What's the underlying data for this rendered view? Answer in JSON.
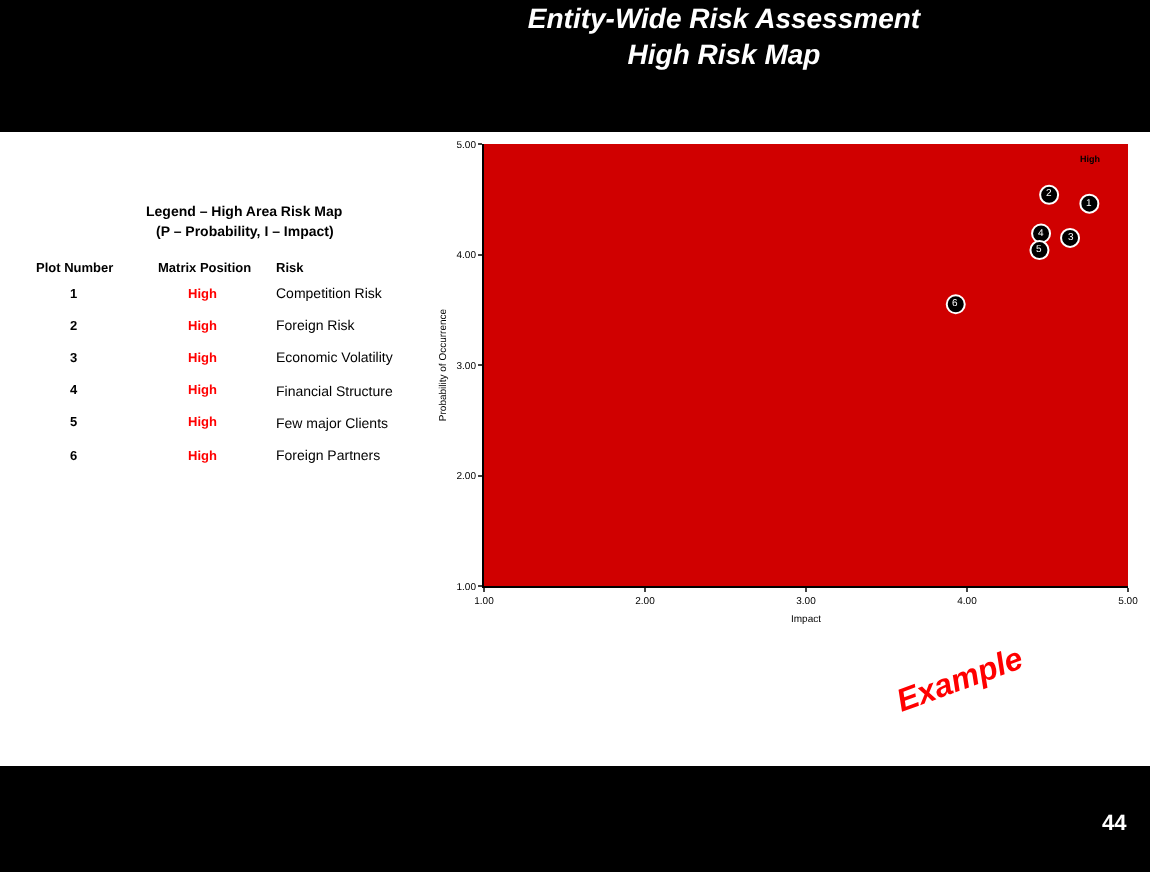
{
  "chart_data": {
    "type": "scatter",
    "title": "Entity-Wide Risk Assessment\nHigh Risk Map",
    "xlabel": "Impact",
    "ylabel": "Probability of Occurrence",
    "x": [
      4.76,
      4.51,
      4.64,
      4.46,
      4.45,
      3.93
    ],
    "series": [
      {
        "color": "#000000",
        "values": [
          4.46,
          4.54,
          4.15,
          4.19,
          4.04,
          3.55
        ]
      }
    ],
    "marker": "circle",
    "xlim": [
      1,
      5
    ],
    "ylim": [
      1,
      5
    ],
    "xticks": [
      {
        "value": 1,
        "label": "1.00"
      },
      {
        "value": 2,
        "label": "2.00"
      },
      {
        "value": 3,
        "label": "3.00"
      },
      {
        "value": 4,
        "label": "4.00"
      },
      {
        "value": 5,
        "label": "5.00"
      }
    ],
    "yticks": [
      {
        "value": 1,
        "label": "1.00"
      },
      {
        "value": 2,
        "label": "2.00"
      },
      {
        "value": 3,
        "label": "3.00"
      },
      {
        "value": 4,
        "label": "4.00"
      },
      {
        "value": 5,
        "label": "5.00"
      }
    ],
    "annotations": [
      "Legend – High Area Risk Map",
      "(P – Probability, I – Impact)",
      "Plot Number",
      "Matrix Position",
      "Risk",
      "1",
      "High",
      "Competition Risk",
      "2",
      "High",
      "Foreign Risk",
      "3",
      "High",
      "Economic Volatility",
      "4",
      "High",
      "Financial Structure",
      "5",
      "High",
      "Few major Clients",
      "6",
      "High",
      "Foreign Partners",
      "High",
      "Example",
      "44",
      {
        "text": "1",
        "x": 4.76,
        "y": 4.46
      },
      {
        "text": "2",
        "x": 4.51,
        "y": 4.54
      },
      {
        "text": "3",
        "x": 4.64,
        "y": 4.15
      },
      {
        "text": "4",
        "x": 4.46,
        "y": 4.19
      },
      {
        "text": "5",
        "x": 4.45,
        "y": 4.04
      },
      {
        "text": "6",
        "x": 3.93,
        "y": 3.55
      }
    ]
  }
}
